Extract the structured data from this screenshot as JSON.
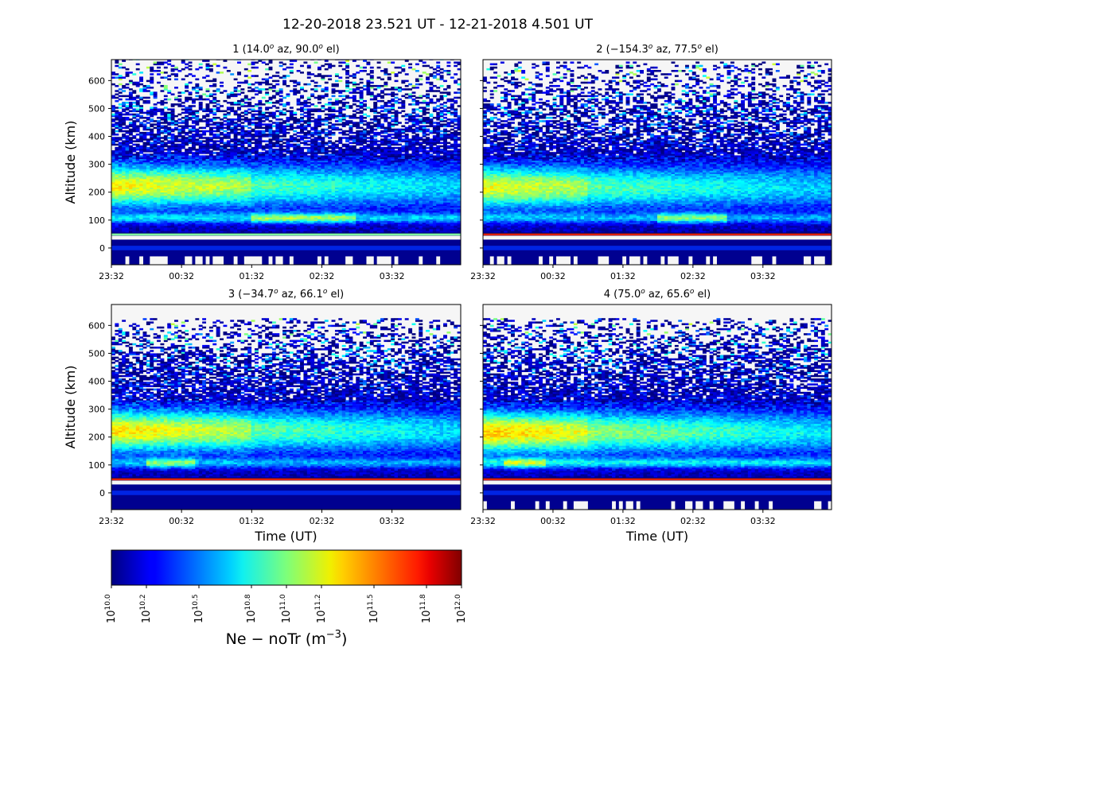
{
  "figure": {
    "title": "12-20-2018 23.521 UT - 12-21-2018 4.501 UT"
  },
  "chart_data": {
    "type": "heatmap",
    "panels": [
      {
        "title": {
          "beam": "1",
          "az": "14.0",
          "el": "90.0"
        },
        "ylabel": "Altitude (km)",
        "xlabel": "",
        "ylim": [
          -60,
          675
        ],
        "blank_above_km": 675,
        "yticks": [
          0,
          100,
          200,
          300,
          400,
          500,
          600
        ],
        "xticks": [
          "23:32",
          "00:32",
          "01:32",
          "02:32",
          "03:32"
        ],
        "features": {
          "f_region_peak_km": 220,
          "f_region_level": 0.5,
          "e_region_km": 105,
          "e_region_level": 0.42,
          "bright_early_hours": [
            0,
            2.0
          ],
          "e_bright_hours": [
            2.0,
            3.5
          ]
        }
      },
      {
        "title": {
          "beam": "2",
          "az": "−154.3",
          "el": "77.5"
        },
        "ylabel": "",
        "xlabel": "",
        "ylim": [
          -60,
          675
        ],
        "blank_above_km": 665,
        "yticks": [
          0,
          100,
          200,
          300,
          400,
          500,
          600
        ],
        "xticks": [
          "23:32",
          "00:32",
          "01:32",
          "02:32",
          "03:32"
        ],
        "features": {
          "f_region_peak_km": 215,
          "f_region_level": 0.48,
          "e_region_km": 105,
          "e_region_level": 0.35,
          "bright_early_hours": [
            0,
            1.5
          ],
          "e_bright_hours": [
            2.5,
            3.5
          ]
        }
      },
      {
        "title": {
          "beam": "3",
          "az": "−34.7",
          "el": "66.1"
        },
        "ylabel": "Altitude (km)",
        "xlabel": "Time (UT)",
        "ylim": [
          -60,
          675
        ],
        "blank_above_km": 622,
        "yticks": [
          0,
          100,
          200,
          300,
          400,
          500,
          600
        ],
        "xticks": [
          "23:32",
          "00:32",
          "01:32",
          "02:32",
          "03:32"
        ],
        "features": {
          "f_region_peak_km": 220,
          "f_region_level": 0.52,
          "e_region_km": 105,
          "e_region_level": 0.35,
          "bright_early_hours": [
            0,
            2.0
          ],
          "e_bright_hours": [
            0.5,
            1.2
          ]
        }
      },
      {
        "title": {
          "beam": "4",
          "az": "75.0",
          "el": "65.6"
        },
        "ylabel": "",
        "xlabel": "Time (UT)",
        "ylim": [
          -60,
          675
        ],
        "blank_above_km": 622,
        "yticks": [
          0,
          100,
          200,
          300,
          400,
          500,
          600
        ],
        "xticks": [
          "23:32",
          "00:32",
          "01:32",
          "02:32",
          "03:32"
        ],
        "features": {
          "f_region_peak_km": 215,
          "f_region_level": 0.55,
          "e_region_km": 105,
          "e_region_level": 0.45,
          "bright_early_hours": [
            0,
            1.5
          ],
          "e_bright_hours": [
            0.3,
            0.9
          ]
        }
      }
    ],
    "x_range_hours": [
      0,
      4.98
    ],
    "colorbar": {
      "colormap": "jet",
      "range_log10": [
        10.0,
        12.0
      ],
      "ticks_log10": [
        "10.0",
        "10.2",
        "10.5",
        "10.8",
        "11.0",
        "11.2",
        "11.5",
        "11.8",
        "12.0"
      ],
      "tick_base": "10",
      "label_main": "Ne − noTr (m",
      "label_exp": "−3",
      "label_close": ")"
    }
  }
}
